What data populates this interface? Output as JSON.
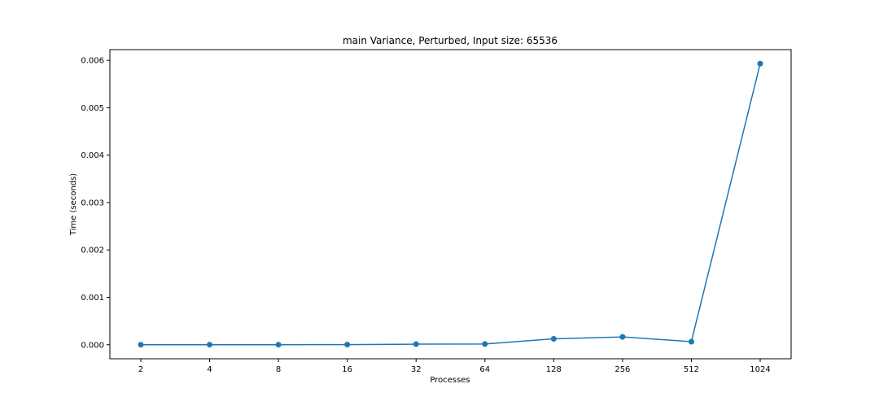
{
  "chart_data": {
    "type": "line",
    "title": "main Variance, Perturbed, Input size: 65536",
    "xlabel": "Processes",
    "ylabel": "Time (seconds)",
    "categories": [
      "2",
      "4",
      "8",
      "16",
      "32",
      "64",
      "128",
      "256",
      "512",
      "1024"
    ],
    "series": [
      {
        "values": [
          5e-07,
          8e-07,
          1e-06,
          3e-06,
          1.2e-05,
          1.5e-05,
          0.000125,
          0.000165,
          6.5e-05,
          0.00593
        ]
      }
    ],
    "yticks": [
      "0.000",
      "0.001",
      "0.002",
      "0.003",
      "0.004",
      "0.005",
      "0.006"
    ],
    "ylim": [
      -0.000296,
      0.0062265
    ],
    "grid": false,
    "legend": "none",
    "line_color": "#1f77b4",
    "marker": "circle"
  }
}
